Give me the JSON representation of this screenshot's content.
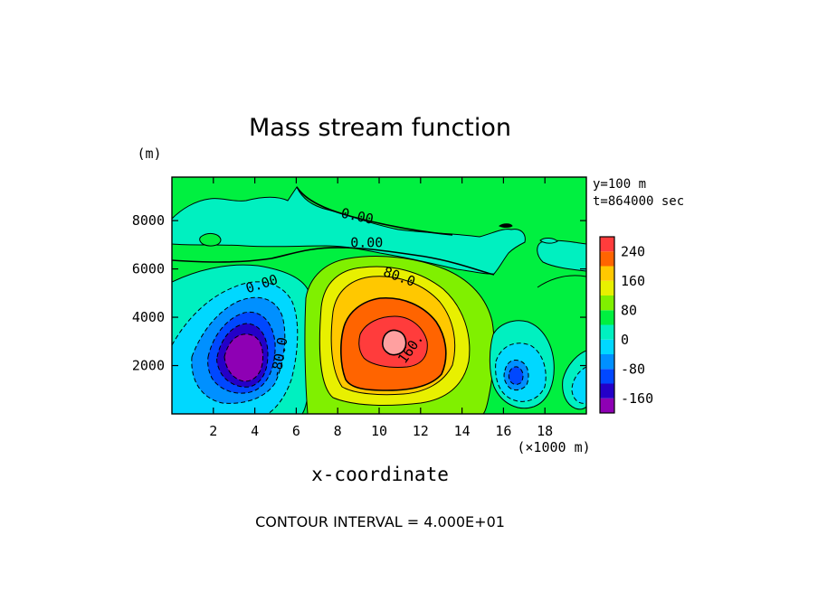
{
  "chart_data": {
    "type": "heatmap",
    "subtype": "filled-contour",
    "title": "Mass stream function",
    "xlabel": "x-coordinate",
    "x_unit": "(×1000 m)",
    "y_unit": "(m)",
    "xlim": [
      0,
      20
    ],
    "ylim": [
      0,
      9800
    ],
    "x_ticks": [
      2,
      4,
      6,
      8,
      10,
      12,
      14,
      16,
      18
    ],
    "y_ticks": [
      2000,
      4000,
      6000,
      8000
    ],
    "x_tick_labels": [
      "2",
      "4",
      "6",
      "8",
      "10",
      "12",
      "14",
      "16",
      "18"
    ],
    "y_tick_labels": [
      "2000",
      "4000",
      "6000",
      "8000"
    ],
    "annotations": [
      "y=100 m",
      "t=864000 sec"
    ],
    "footer": "CONTOUR INTERVAL = 4.000E+01",
    "contour_interval": 40,
    "contour_labels": [
      {
        "text": "0.00",
        "x": 8.9,
        "y": 8000
      },
      {
        "text": "0.00",
        "x": 9.4,
        "y": 6900
      },
      {
        "text": "0.00",
        "x": 4.4,
        "y": 5200
      },
      {
        "text": "80.0",
        "x": 10.9,
        "y": 5500
      },
      {
        "text": "160.",
        "x": 11.7,
        "y": 2600
      },
      {
        "text": "-80.0",
        "x": 5.4,
        "y": 2300
      }
    ],
    "colorbar": {
      "levels": [
        -200,
        -160,
        -120,
        -80,
        -40,
        0,
        40,
        80,
        120,
        160,
        200,
        240,
        280
      ],
      "labels": [
        "240",
        "160",
        "80",
        "0",
        "-80",
        "-160"
      ],
      "label_values": [
        240,
        160,
        80,
        0,
        -80,
        -160
      ],
      "colors": [
        "#8e00b4",
        "#2400c8",
        "#0048ff",
        "#0090ff",
        "#00d8ff",
        "#00f0c0",
        "#00f040",
        "#80f000",
        "#e8f000",
        "#ffc800",
        "#ff6400",
        "#ff3c3c"
      ]
    },
    "features": [
      {
        "name": "positive cell",
        "x": 10.7,
        "y": 3100,
        "peak": 260
      },
      {
        "name": "negative cell",
        "x": 3.6,
        "y": 2400,
        "peak": -180
      },
      {
        "name": "small negative cell",
        "x": 16.7,
        "y": 1600,
        "peak": -120
      },
      {
        "name": "small negative edge cell",
        "x": 19.8,
        "y": 1200,
        "peak": -60
      }
    ]
  }
}
